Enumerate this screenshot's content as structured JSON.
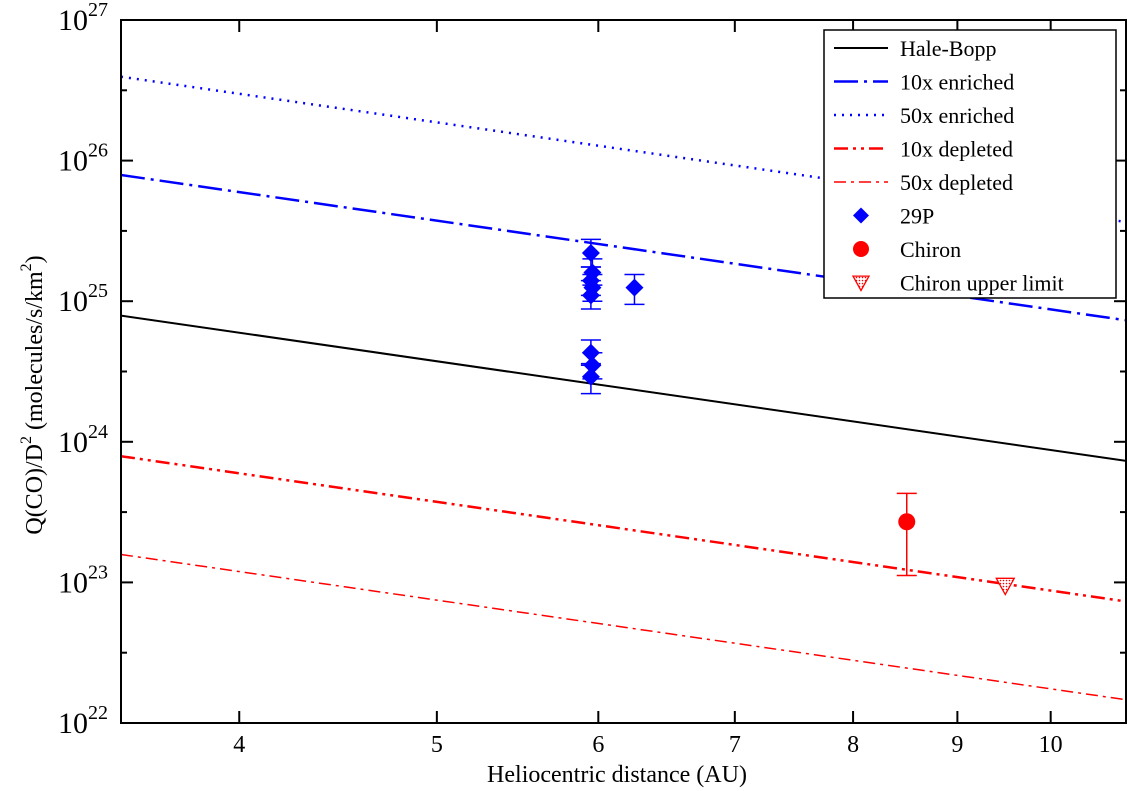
{
  "chart_data": {
    "type": "line",
    "xlabel": "Heliocentric distance (AU)",
    "ylabel": {
      "base": "Q(CO)/D",
      "exp": "2",
      "units_prefix": "(molecules/s/km",
      "units_exp": "2",
      "units_suffix": ")"
    },
    "x_scale": "log",
    "y_scale": "log",
    "xlim": [
      3.5,
      10.9
    ],
    "ylim": [
      1e+22,
      1e+27
    ],
    "x_ticks": [
      {
        "value": 4,
        "label": "4"
      },
      {
        "value": 5,
        "label": "5"
      },
      {
        "value": 6,
        "label": "6"
      },
      {
        "value": 7,
        "label": "7"
      },
      {
        "value": 8,
        "label": "8"
      },
      {
        "value": 9,
        "label": "9"
      },
      {
        "value": 10,
        "label": "10"
      }
    ],
    "y_ticks": [
      {
        "value": 1e+22,
        "base": "10",
        "exp": "22"
      },
      {
        "value": 1e+23,
        "base": "10",
        "exp": "23"
      },
      {
        "value": 1e+24,
        "base": "10",
        "exp": "24"
      },
      {
        "value": 1e+25,
        "base": "10",
        "exp": "25"
      },
      {
        "value": 1e+26,
        "base": "10",
        "exp": "26"
      },
      {
        "value": 1e+27,
        "base": "10",
        "exp": "27"
      }
    ],
    "grid": false,
    "legend_position": "top-right",
    "series": [
      {
        "name": "Hale-Bopp",
        "kind": "line",
        "color": "#000000",
        "style": "solid",
        "x": [
          3.5,
          10.9
        ],
        "y": [
          7.9e+24,
          7.3e+23
        ]
      },
      {
        "name": "10x enriched",
        "kind": "line",
        "color": "#0000ff",
        "style": "dash-dot-long",
        "x": [
          3.5,
          10.9
        ],
        "y": [
          7.9e+25,
          7.3e+24
        ]
      },
      {
        "name": "50x enriched",
        "kind": "line",
        "color": "#0000ff",
        "style": "dotted",
        "x": [
          3.5,
          10.9
        ],
        "y": [
          3.95e+26,
          3.65e+25
        ]
      },
      {
        "name": "10x  depleted",
        "kind": "line",
        "color": "#ff0000",
        "style": "dash-dot-dot",
        "x": [
          3.5,
          10.9
        ],
        "y": [
          7.9e+23,
          7.3e+22
        ]
      },
      {
        "name": "50x depleted",
        "kind": "line",
        "color": "#ff0000",
        "style": "dash-dot-thin",
        "x": [
          3.5,
          10.9
        ],
        "y": [
          1.58e+23,
          1.46e+22
        ]
      },
      {
        "name": "29P",
        "kind": "points",
        "marker": "diamond",
        "color": "#0000ff",
        "points": [
          {
            "x": 5.95,
            "y": 2.2e+25,
            "ylo": 1.75e+25,
            "yhi": 2.75e+25
          },
          {
            "x": 5.96,
            "y": 1.6e+25,
            "ylo": 1.3e+25,
            "yhi": 2e+25
          },
          {
            "x": 5.95,
            "y": 1.4e+25,
            "ylo": 1.1e+25,
            "yhi": 1.75e+25
          },
          {
            "x": 5.96,
            "y": 1.25e+25,
            "ylo": 1e+25,
            "yhi": 1.55e+25
          },
          {
            "x": 5.95,
            "y": 1.1e+25,
            "ylo": 8.8e+24,
            "yhi": 1.4e+25
          },
          {
            "x": 5.95,
            "y": 4.3e+24,
            "ylo": 3.5e+24,
            "yhi": 5.3e+24
          },
          {
            "x": 5.96,
            "y": 3.5e+24,
            "ylo": 2.8e+24,
            "yhi": 4.3e+24
          },
          {
            "x": 5.95,
            "y": 2.9e+24,
            "ylo": 2.2e+24,
            "yhi": 3.6e+24
          },
          {
            "x": 6.25,
            "y": 1.25e+25,
            "ylo": 9.5e+24,
            "yhi": 1.55e+25
          }
        ]
      },
      {
        "name": "Chiron",
        "kind": "points",
        "marker": "circle",
        "color": "#ff0000",
        "points": [
          {
            "x": 8.5,
            "y": 2.7e+23,
            "ylo": 1.12e+23,
            "yhi": 4.3e+23
          }
        ]
      },
      {
        "name": "Chiron upper limit",
        "kind": "points",
        "marker": "triangle-down",
        "color": "#ff0000",
        "points": [
          {
            "x": 9.5,
            "y": 9.5e+22
          }
        ]
      }
    ]
  }
}
